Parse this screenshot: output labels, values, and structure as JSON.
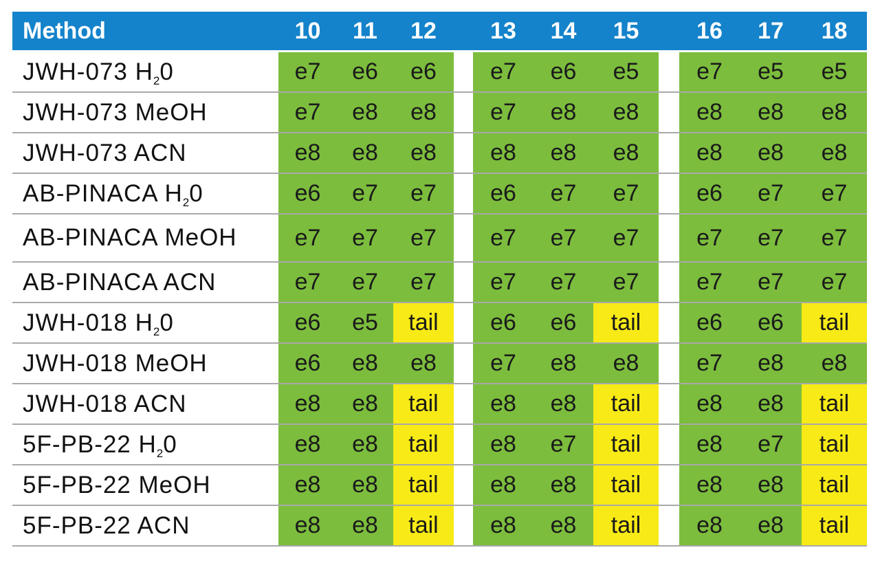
{
  "colors": {
    "header": "#1483cb",
    "ok": "#7cbd3d",
    "tail": "#f7ea16",
    "separator": "#a9a9a9"
  },
  "header": {
    "method_label": "Method",
    "columns": [
      "10",
      "11",
      "12",
      "13",
      "14",
      "15",
      "16",
      "17",
      "18"
    ]
  },
  "rows": [
    {
      "label": "JWH-073 H",
      "sub": "2",
      "suffix": "0",
      "values": [
        "e7",
        "e6",
        "e6",
        "e7",
        "e6",
        "e5",
        "e7",
        "e5",
        "e5"
      ]
    },
    {
      "label": "JWH-073 MeOH",
      "values": [
        "e7",
        "e8",
        "e8",
        "e7",
        "e8",
        "e8",
        "e8",
        "e8",
        "e8"
      ]
    },
    {
      "label": "JWH-073 ACN",
      "values": [
        "e8",
        "e8",
        "e8",
        "e8",
        "e8",
        "e8",
        "e8",
        "e8",
        "e8"
      ]
    },
    {
      "label": "AB-PINACA H",
      "sub": "2",
      "suffix": "0",
      "values": [
        "e6",
        "e7",
        "e7",
        "e6",
        "e7",
        "e7",
        "e6",
        "e7",
        "e7"
      ]
    },
    {
      "label": "AB-PINACA MeOH",
      "values": [
        "e7",
        "e7",
        "e7",
        "e7",
        "e7",
        "e7",
        "e7",
        "e7",
        "e7"
      ]
    },
    {
      "label": "AB-PINACA ACN",
      "values": [
        "e7",
        "e7",
        "e7",
        "e7",
        "e7",
        "e7",
        "e7",
        "e7",
        "e7"
      ]
    },
    {
      "label": "JWH-018 H",
      "sub": "2",
      "suffix": "0",
      "values": [
        "e6",
        "e5",
        "tail",
        "e6",
        "e6",
        "tail",
        "e6",
        "e6",
        "tail"
      ]
    },
    {
      "label": "JWH-018 MeOH",
      "values": [
        "e6",
        "e8",
        "e8",
        "e7",
        "e8",
        "e8",
        "e7",
        "e8",
        "e8"
      ]
    },
    {
      "label": "JWH-018 ACN",
      "values": [
        "e8",
        "e8",
        "tail",
        "e8",
        "e8",
        "tail",
        "e8",
        "e8",
        "tail"
      ]
    },
    {
      "label": "5F-PB-22 H",
      "sub": "2",
      "suffix": "0",
      "values": [
        "e8",
        "e8",
        "tail",
        "e8",
        "e7",
        "tail",
        "e8",
        "e7",
        "tail"
      ]
    },
    {
      "label": "5F-PB-22 MeOH",
      "values": [
        "e8",
        "e8",
        "tail",
        "e8",
        "e8",
        "tail",
        "e8",
        "e8",
        "tail"
      ]
    },
    {
      "label": "5F-PB-22 ACN",
      "values": [
        "e8",
        "e8",
        "tail",
        "e8",
        "e8",
        "tail",
        "e8",
        "e8",
        "tail"
      ]
    }
  ]
}
